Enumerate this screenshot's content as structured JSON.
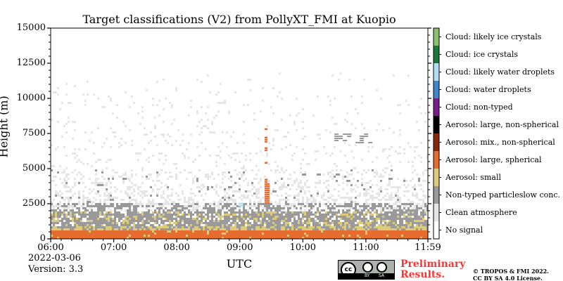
{
  "chart_data": {
    "type": "heatmap",
    "title": "Target classifications (V2) from PollyXT_FMI at Kuopio",
    "xlabel": "UTC",
    "ylabel": "Height (m)",
    "xlim": [
      "06:00",
      "11:59"
    ],
    "ylim": [
      0,
      15000
    ],
    "x_tick_labels": [
      "06:00",
      "07:00",
      "08:00",
      "09:00",
      "10:00",
      "11:00",
      "11:59"
    ],
    "y_tick_labels": [
      "0",
      "2500",
      "5000",
      "7500",
      "10000",
      "12500",
      "15000"
    ],
    "classes": [
      {
        "label": "No signal",
        "color": "#ffffff"
      },
      {
        "label": "Clean atmosphere",
        "color": "#e6e6e6"
      },
      {
        "label": "Non-typed particleslow conc.",
        "color": "#9a9a9a"
      },
      {
        "label": "Aerosol: small",
        "color": "#dccb7a"
      },
      {
        "label": "Aerosol: large, spherical",
        "color": "#e66c30"
      },
      {
        "label": "Aerosol: mix., non-spherical",
        "color": "#8b2609"
      },
      {
        "label": "Aerosol: large, non-spherical",
        "color": "#000000"
      },
      {
        "label": "Cloud: non-typed",
        "color": "#7a1e8a"
      },
      {
        "label": "Cloud: water droplets",
        "color": "#3c88c8"
      },
      {
        "label": "Cloud: likely water droplets",
        "color": "#b4dcf4"
      },
      {
        "label": "Cloud: ice crystals",
        "color": "#187838"
      },
      {
        "label": "Cloud: likely ice crystals",
        "color": "#8ac070"
      }
    ],
    "layers": [
      {
        "class": "Aerosol: large, spherical",
        "from_m": 0,
        "to_m": 600
      },
      {
        "class": "Aerosol: small",
        "from_m": 600,
        "to_m": 900
      },
      {
        "class": "Non-typed particleslow conc.",
        "from_m": 900,
        "to_m": 2500
      },
      {
        "class": "Clean atmosphere",
        "from_m": 2500,
        "to_m": 12000
      }
    ],
    "features": [
      {
        "class": "Aerosol: large, spherical",
        "time": "09:25",
        "from_m": 2500,
        "to_m": 8000
      },
      {
        "class": "Cloud: likely water droplets",
        "time": "09:00",
        "from_m": 2300,
        "to_m": 2500
      },
      {
        "class": "Non-typed particleslow conc.",
        "time_from": "10:30",
        "time_to": "11:05",
        "from_m": 6800,
        "to_m": 7500
      }
    ]
  },
  "footer": {
    "date": "2022-03-06",
    "version": "Version: 3.3",
    "preliminary_1": "Preliminary",
    "preliminary_2": "Results.",
    "copyright_1": "© TROPOS & FMI 2022.",
    "copyright_2": "CC BY SA 4.0 License.",
    "cc_logo": "cc",
    "cc_by": "BY",
    "cc_sa": "SA"
  }
}
